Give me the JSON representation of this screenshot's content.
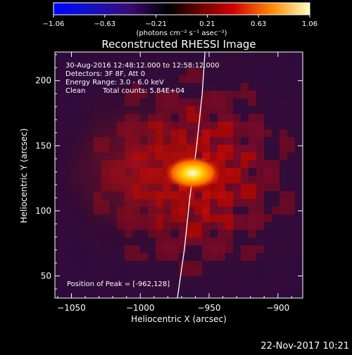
{
  "colorbar": {
    "ticks": [
      "−1.06",
      "−0.63",
      "−0.21",
      "0.21",
      "0.63",
      "1.06"
    ],
    "unit_label": "(photons cm⁻² s⁻¹ asec⁻²)"
  },
  "footer": {
    "date": "22-Nov-2017 10:21"
  },
  "chart_data": {
    "type": "heatmap",
    "title": "Reconstructed RHESSI Image",
    "xlabel": "Heliocentric X (arcsec)",
    "ylabel": "Heliocentric Y (arcsec)",
    "xlim": [
      -1062,
      -882
    ],
    "ylim": [
      33,
      222
    ],
    "x_ticks": [
      "−1050",
      "−1000",
      "−950",
      "−900"
    ],
    "x_tick_values": [
      -1050,
      -1000,
      -950,
      -900
    ],
    "y_ticks": [
      "200",
      "150",
      "100",
      "50"
    ],
    "y_tick_values": [
      200,
      150,
      100,
      50
    ],
    "color_range": [
      -1.06,
      1.06
    ],
    "peak": {
      "x": -962,
      "y": 128,
      "value": 1.06
    },
    "annotations": {
      "time_range": "30-Aug-2016 12:48:12.000 to 12:58:12.000",
      "detectors": "Detectors: 3F 8F, Att 0",
      "energy": "Energy Range: 3.0 - 6.0 keV",
      "method": "Clean",
      "counts": "Total counts: 5.84E+04",
      "peak_label": "Position of Peak = [-962,128]"
    },
    "limb_curve": [
      [
        -953,
        222
      ],
      [
        -955,
        190
      ],
      [
        -959,
        150
      ],
      [
        -964,
        110
      ],
      [
        -968,
        70
      ],
      [
        -973,
        33
      ]
    ]
  }
}
